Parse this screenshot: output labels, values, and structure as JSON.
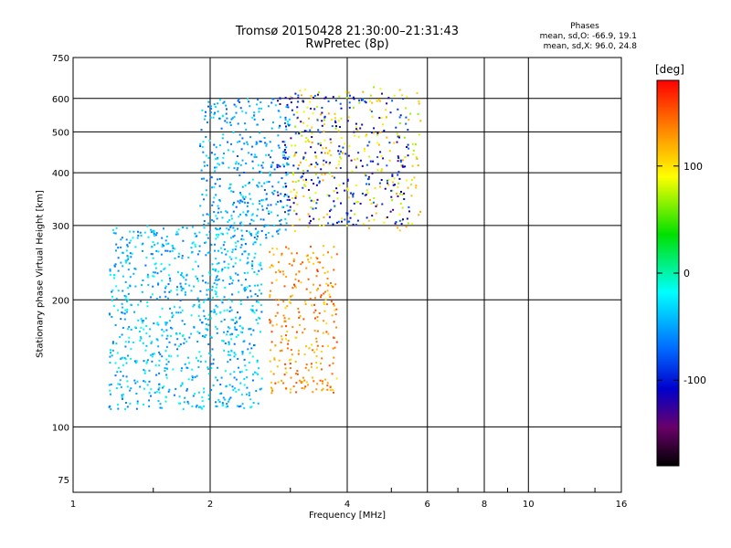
{
  "header": {
    "title_line1": "Tromsø 20150428 21:30:00–21:31:43",
    "title_line2": "RwPretec (8p)",
    "phases_title": "Phases",
    "phases_o": "mean, sd,O: -66.9, 19.1",
    "phases_x": "mean, sd,X:  96.0, 24.8"
  },
  "colorbar": {
    "unit_label": "[deg]",
    "ticks": [
      100,
      0,
      -100
    ],
    "tick_labels": [
      "100",
      "0",
      "-100"
    ],
    "range": [
      -180,
      180
    ]
  },
  "chart_data": {
    "type": "scatter",
    "xlabel": "Frequency [MHz]",
    "ylabel": "Stationary phase Virtual Height [km]",
    "xscale": "log",
    "yscale": "log",
    "xlim": [
      1,
      16
    ],
    "ylim": [
      70,
      750
    ],
    "x_ticks": [
      1,
      2,
      4,
      6,
      8,
      10,
      16
    ],
    "x_tick_labels": [
      "1",
      "2",
      "4",
      "6",
      "8",
      "10",
      "16"
    ],
    "y_ticks": [
      75,
      100,
      200,
      300,
      400,
      500,
      600,
      750
    ],
    "y_tick_labels": [
      "75",
      "100",
      "200",
      "300",
      "400",
      "500",
      "600",
      "750"
    ],
    "grid": true,
    "color_encodes": "phase (deg)",
    "clusters": [
      {
        "desc": "O-mode F-layer echoes low band",
        "x": [
          1.2,
          2.6
        ],
        "y": [
          110,
          300
        ],
        "phase_mean": -40,
        "n": 900
      },
      {
        "desc": "O-mode F2 upper band",
        "x": [
          1.9,
          3.0
        ],
        "y": [
          280,
          600
        ],
        "phase_mean": -50,
        "n": 380
      },
      {
        "desc": "X-mode echoes",
        "x": [
          2.7,
          3.8
        ],
        "y": [
          120,
          270
        ],
        "phase_mean": 130,
        "n": 280
      },
      {
        "desc": "X-mode upper trace",
        "x": [
          3.0,
          5.8
        ],
        "y": [
          290,
          640
        ],
        "phase_mean": 95,
        "n": 260
      },
      {
        "desc": "O-mode F2 cusp",
        "x": [
          2.8,
          5.5
        ],
        "y": [
          300,
          620
        ],
        "phase_mean": -100,
        "n": 280
      }
    ]
  }
}
